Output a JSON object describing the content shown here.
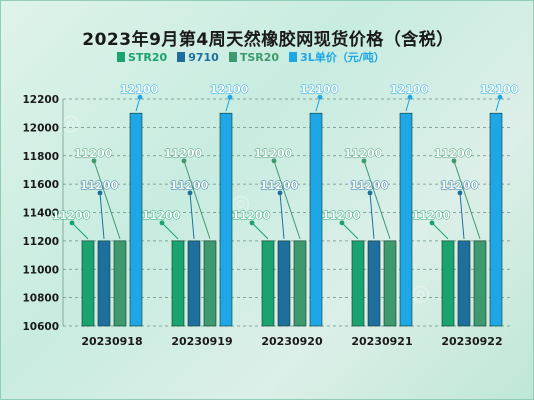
{
  "chart_data": {
    "type": "bar",
    "title": "2023年9月第4周天然橡胶网现货价格（含税）",
    "categories": [
      "20230918",
      "20230919",
      "20230920",
      "20230921",
      "20230922"
    ],
    "series": [
      {
        "name": "STR20",
        "values": [
          11200,
          11200,
          11200,
          11200,
          11200
        ],
        "labels": [
          "11200",
          "11200",
          "11200",
          "11200",
          "11200"
        ]
      },
      {
        "name": "9710",
        "values": [
          11200,
          11200,
          11200,
          11200,
          11200
        ],
        "labels": [
          "11200",
          "11200",
          "11200",
          "11200",
          "11200"
        ]
      },
      {
        "name": "TSR20",
        "values": [
          11200,
          11200,
          11200,
          11200,
          11200
        ],
        "labels": [
          "11200",
          "11200",
          "11200",
          "11200",
          "11200"
        ]
      },
      {
        "name": "3L单价（元/吨）",
        "values": [
          12100,
          12100,
          12100,
          12100,
          12100
        ],
        "labels": [
          "12100",
          "12100",
          "12100",
          "12100",
          "12100"
        ]
      }
    ],
    "yticks": [
      "10600",
      "10800",
      "11000",
      "11200",
      "11400",
      "11600",
      "11800",
      "12000",
      "12200"
    ],
    "ylim": [
      10600,
      12200
    ],
    "grid": "horizontal-dashed",
    "legend": "top",
    "colors": [
      "#1aa36f",
      "#1f6f9e",
      "#3e9a6e",
      "#1ea6e6"
    ]
  }
}
